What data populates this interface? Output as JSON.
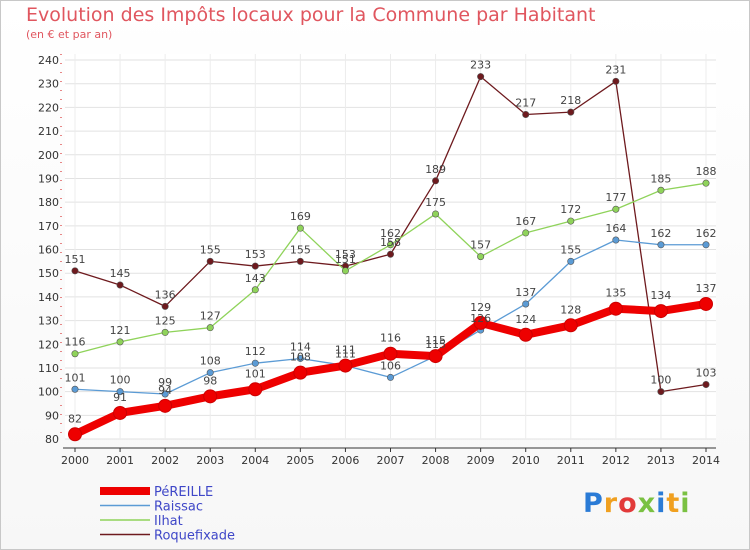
{
  "chart_data": {
    "type": "line",
    "title": "Evolution des Impôts locaux pour la Commune par Habitant",
    "subtitle": "(en € et par an)",
    "xlabel": "",
    "ylabel": "",
    "categories": [
      "2000",
      "2001",
      "2002",
      "2003",
      "2004",
      "2005",
      "2006",
      "2007",
      "2008",
      "2009",
      "2010",
      "2011",
      "2012",
      "2013",
      "2014"
    ],
    "ylim": [
      80,
      240
    ],
    "yticks": [
      80,
      90,
      100,
      110,
      120,
      130,
      140,
      150,
      160,
      170,
      180,
      190,
      200,
      210,
      220,
      230,
      240
    ],
    "grid": true,
    "legend": "bottom-left",
    "series": [
      {
        "name": "Roquefixade",
        "color": "#6e1a1e",
        "values": [
          151,
          145,
          136,
          155,
          153,
          155,
          153,
          158,
          189,
          233,
          217,
          218,
          231,
          100,
          103
        ],
        "labels": [
          "151",
          "145",
          "136",
          "155",
          "153",
          "155",
          "153",
          "158",
          "189",
          "233",
          "217",
          "218",
          "231",
          "100",
          "103"
        ]
      },
      {
        "name": "Ilhat",
        "color": "#8fd35a",
        "values": [
          116,
          121,
          125,
          127,
          143,
          169,
          151,
          162,
          175,
          157,
          167,
          172,
          177,
          185,
          188
        ],
        "labels": [
          "116",
          "121",
          "125",
          "127",
          "143",
          "169",
          "151",
          "162",
          "175",
          "157",
          "167",
          "172",
          "177",
          "185",
          "188"
        ]
      },
      {
        "name": "Raissac",
        "color": "#5b9bd5",
        "values": [
          101,
          100,
          99,
          108,
          112,
          114,
          111,
          106,
          115,
          126,
          137,
          155,
          164,
          162,
          162
        ],
        "labels": [
          "101",
          "100",
          "99",
          "108",
          "112",
          "114",
          "111",
          "106",
          "115",
          "126",
          "137",
          "155",
          "164",
          "162",
          "162"
        ]
      },
      {
        "name": "PéREILLE",
        "color": "#ee0000",
        "values": [
          82,
          91,
          94,
          98,
          101,
          108,
          111,
          116,
          115,
          129,
          124,
          128,
          135,
          134,
          137
        ],
        "labels": [
          "82",
          "91",
          "94",
          "98",
          "101",
          "108",
          "111",
          "116",
          "115",
          "129",
          "124",
          "128",
          "135",
          "134",
          "137"
        ]
      }
    ],
    "legend_order": [
      "PéREILLE",
      "Raissac",
      "Ilhat",
      "Roquefixade"
    ]
  },
  "logo": {
    "letters": [
      "P",
      "r",
      "o",
      "x",
      "i",
      "t",
      "i"
    ],
    "colors": [
      "#2a7bd6",
      "#f0a020",
      "#e23a3a",
      "#7ac142",
      "#2a7bd6",
      "#f0a020",
      "#7ac142"
    ]
  }
}
